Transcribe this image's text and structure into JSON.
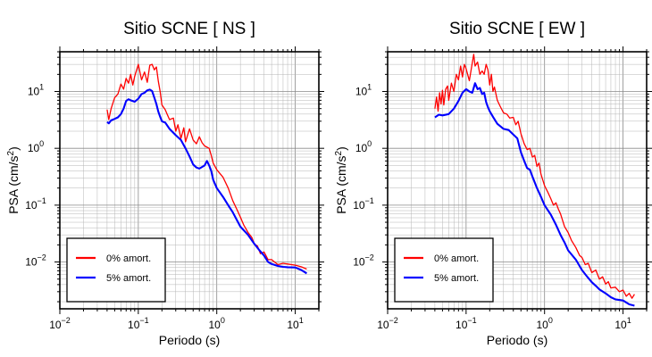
{
  "chart_data": [
    {
      "type": "line",
      "title": "Sitio SCNE [ NS ]",
      "xlabel": "Periodo (s)",
      "ylabel": "PSA (cm/s²)",
      "xscale": "log",
      "yscale": "log",
      "xlim": [
        0.01,
        20
      ],
      "ylim": [
        0.0015,
        50
      ],
      "grid": true,
      "legend_position": "bottom-left",
      "x_tick_labels": [
        {
          "value": 0.01,
          "base": "10",
          "exp": "−2"
        },
        {
          "value": 0.1,
          "base": "10",
          "exp": "−1"
        },
        {
          "value": 1,
          "base": "10",
          "exp": "0"
        },
        {
          "value": 10,
          "base": "10",
          "exp": "1"
        }
      ],
      "y_tick_labels": [
        {
          "value": 0.01,
          "base": "10",
          "exp": "−2"
        },
        {
          "value": 0.1,
          "base": "10",
          "exp": "−1"
        },
        {
          "value": 1,
          "base": "10",
          "exp": "0"
        },
        {
          "value": 10,
          "base": "10",
          "exp": "1"
        }
      ],
      "series": [
        {
          "name": "0% amort.",
          "color": "#ff0000",
          "points": [
            [
              0.04,
              4.8
            ],
            [
              0.042,
              3.2
            ],
            [
              0.045,
              5.0
            ],
            [
              0.05,
              7.8
            ],
            [
              0.055,
              9.0
            ],
            [
              0.06,
              13.5
            ],
            [
              0.065,
              11.0
            ],
            [
              0.07,
              17.0
            ],
            [
              0.075,
              14.0
            ],
            [
              0.08,
              20.0
            ],
            [
              0.085,
              13.0
            ],
            [
              0.09,
              18.5
            ],
            [
              0.1,
              30.0
            ],
            [
              0.11,
              16.0
            ],
            [
              0.12,
              22.0
            ],
            [
              0.13,
              14.5
            ],
            [
              0.14,
              29.0
            ],
            [
              0.15,
              30.0
            ],
            [
              0.16,
              24.0
            ],
            [
              0.17,
              27.0
            ],
            [
              0.18,
              15.0
            ],
            [
              0.19,
              10.0
            ],
            [
              0.2,
              5.8
            ],
            [
              0.22,
              4.8
            ],
            [
              0.25,
              3.2
            ],
            [
              0.28,
              3.4
            ],
            [
              0.3,
              2.0
            ],
            [
              0.32,
              2.6
            ],
            [
              0.35,
              1.5
            ],
            [
              0.38,
              2.3
            ],
            [
              0.4,
              1.3
            ],
            [
              0.45,
              2.2
            ],
            [
              0.5,
              1.4
            ],
            [
              0.55,
              1.2
            ],
            [
              0.6,
              1.6
            ],
            [
              0.65,
              1.25
            ],
            [
              0.7,
              1.1
            ],
            [
              0.8,
              1.0
            ],
            [
              0.85,
              0.75
            ],
            [
              0.9,
              0.55
            ],
            [
              1.0,
              0.42
            ],
            [
              1.2,
              0.31
            ],
            [
              1.4,
              0.2
            ],
            [
              1.6,
              0.12
            ],
            [
              1.8,
              0.085
            ],
            [
              2.0,
              0.062
            ],
            [
              2.2,
              0.045
            ],
            [
              2.5,
              0.033
            ],
            [
              2.8,
              0.027
            ],
            [
              3.0,
              0.021
            ],
            [
              3.3,
              0.019
            ],
            [
              3.6,
              0.014
            ],
            [
              4.0,
              0.015
            ],
            [
              4.5,
              0.011
            ],
            [
              5.0,
              0.011
            ],
            [
              6.0,
              0.009
            ],
            [
              7.0,
              0.0095
            ],
            [
              8.0,
              0.0092
            ],
            [
              10.0,
              0.0088
            ],
            [
              12.0,
              0.0082
            ],
            [
              14.0,
              0.0075
            ]
          ]
        },
        {
          "name": "5% amort.",
          "color": "#0000ff",
          "points": [
            [
              0.04,
              2.9
            ],
            [
              0.042,
              2.75
            ],
            [
              0.045,
              3.1
            ],
            [
              0.05,
              3.3
            ],
            [
              0.055,
              3.5
            ],
            [
              0.06,
              4.0
            ],
            [
              0.065,
              5.0
            ],
            [
              0.07,
              6.8
            ],
            [
              0.075,
              7.3
            ],
            [
              0.08,
              7.0
            ],
            [
              0.09,
              6.6
            ],
            [
              0.1,
              7.5
            ],
            [
              0.11,
              9.0
            ],
            [
              0.12,
              9.5
            ],
            [
              0.13,
              10.5
            ],
            [
              0.14,
              10.8
            ],
            [
              0.15,
              10.2
            ],
            [
              0.16,
              7.8
            ],
            [
              0.17,
              6.0
            ],
            [
              0.18,
              4.4
            ],
            [
              0.19,
              3.6
            ],
            [
              0.2,
              3.0
            ],
            [
              0.21,
              2.9
            ],
            [
              0.22,
              2.85
            ],
            [
              0.25,
              2.2
            ],
            [
              0.3,
              1.7
            ],
            [
              0.35,
              1.4
            ],
            [
              0.4,
              1.0
            ],
            [
              0.45,
              0.72
            ],
            [
              0.5,
              0.52
            ],
            [
              0.55,
              0.46
            ],
            [
              0.6,
              0.44
            ],
            [
              0.7,
              0.5
            ],
            [
              0.75,
              0.6
            ],
            [
              0.8,
              0.5
            ],
            [
              0.85,
              0.4
            ],
            [
              0.9,
              0.28
            ],
            [
              1.0,
              0.2
            ],
            [
              1.2,
              0.14
            ],
            [
              1.4,
              0.1
            ],
            [
              1.6,
              0.075
            ],
            [
              1.8,
              0.055
            ],
            [
              2.0,
              0.042
            ],
            [
              2.5,
              0.03
            ],
            [
              3.0,
              0.021
            ],
            [
              3.5,
              0.016
            ],
            [
              4.0,
              0.013
            ],
            [
              4.5,
              0.01
            ],
            [
              5.0,
              0.0092
            ],
            [
              6.0,
              0.0085
            ],
            [
              7.0,
              0.0082
            ],
            [
              8.0,
              0.0081
            ],
            [
              10.0,
              0.008
            ],
            [
              12.0,
              0.0072
            ],
            [
              14.0,
              0.0063
            ]
          ]
        }
      ]
    },
    {
      "type": "line",
      "title": "Sitio SCNE [ EW ]",
      "xlabel": "Periodo (s)",
      "ylabel": "PSA (cm/s²)",
      "xscale": "log",
      "yscale": "log",
      "xlim": [
        0.01,
        20
      ],
      "ylim": [
        0.0015,
        50
      ],
      "grid": true,
      "legend_position": "bottom-left",
      "x_tick_labels": [
        {
          "value": 0.01,
          "base": "10",
          "exp": "−2"
        },
        {
          "value": 0.1,
          "base": "10",
          "exp": "−1"
        },
        {
          "value": 1,
          "base": "10",
          "exp": "0"
        },
        {
          "value": 10,
          "base": "10",
          "exp": "1"
        }
      ],
      "y_tick_labels": [
        {
          "value": 0.01,
          "base": "10",
          "exp": "−2"
        },
        {
          "value": 0.1,
          "base": "10",
          "exp": "−1"
        },
        {
          "value": 1,
          "base": "10",
          "exp": "0"
        },
        {
          "value": 10,
          "base": "10",
          "exp": "1"
        }
      ],
      "series": [
        {
          "name": "0% amort.",
          "color": "#ff0000",
          "points": [
            [
              0.04,
              5.0
            ],
            [
              0.042,
              8.0
            ],
            [
              0.044,
              4.5
            ],
            [
              0.046,
              9.5
            ],
            [
              0.048,
              6.0
            ],
            [
              0.05,
              10.5
            ],
            [
              0.052,
              5.8
            ],
            [
              0.055,
              11.0
            ],
            [
              0.058,
              12.5
            ],
            [
              0.06,
              7.0
            ],
            [
              0.065,
              14.0
            ],
            [
              0.07,
              10.0
            ],
            [
              0.075,
              20.0
            ],
            [
              0.08,
              16.0
            ],
            [
              0.085,
              28.0
            ],
            [
              0.09,
              18.0
            ],
            [
              0.095,
              30.0
            ],
            [
              0.1,
              25.0
            ],
            [
              0.11,
              15.5
            ],
            [
              0.12,
              32.0
            ],
            [
              0.125,
              45.0
            ],
            [
              0.13,
              28.0
            ],
            [
              0.14,
              33.0
            ],
            [
              0.15,
              20.0
            ],
            [
              0.16,
              23.0
            ],
            [
              0.17,
              20.0
            ],
            [
              0.18,
              30.0
            ],
            [
              0.19,
              24.0
            ],
            [
              0.2,
              13.0
            ],
            [
              0.21,
              20.0
            ],
            [
              0.22,
              10.0
            ],
            [
              0.23,
              12.0
            ],
            [
              0.25,
              7.0
            ],
            [
              0.27,
              5.6
            ],
            [
              0.3,
              4.2
            ],
            [
              0.33,
              4.0
            ],
            [
              0.36,
              3.4
            ],
            [
              0.4,
              3.5
            ],
            [
              0.43,
              2.6
            ],
            [
              0.46,
              3.0
            ],
            [
              0.5,
              1.8
            ],
            [
              0.55,
              1.2
            ],
            [
              0.6,
              0.95
            ],
            [
              0.65,
              1.0
            ],
            [
              0.7,
              0.7
            ],
            [
              0.75,
              0.75
            ],
            [
              0.8,
              0.48
            ],
            [
              0.85,
              0.55
            ],
            [
              0.9,
              0.35
            ],
            [
              1.0,
              0.22
            ],
            [
              1.1,
              0.17
            ],
            [
              1.2,
              0.13
            ],
            [
              1.3,
              0.1
            ],
            [
              1.4,
              0.11
            ],
            [
              1.5,
              0.085
            ],
            [
              1.6,
              0.07
            ],
            [
              1.8,
              0.042
            ],
            [
              2.0,
              0.033
            ],
            [
              2.2,
              0.024
            ],
            [
              2.5,
              0.018
            ],
            [
              2.8,
              0.013
            ],
            [
              3.0,
              0.012
            ],
            [
              3.3,
              0.009
            ],
            [
              3.6,
              0.0095
            ],
            [
              4.0,
              0.0065
            ],
            [
              4.5,
              0.0072
            ],
            [
              5.0,
              0.005
            ],
            [
              5.5,
              0.0055
            ],
            [
              6.0,
              0.0041
            ],
            [
              6.5,
              0.0045
            ],
            [
              7.0,
              0.0035
            ],
            [
              8.0,
              0.0036
            ],
            [
              9.0,
              0.003
            ],
            [
              10.0,
              0.0032
            ],
            [
              11.0,
              0.0025
            ],
            [
              12.0,
              0.0028
            ],
            [
              13.0,
              0.0023
            ],
            [
              14.0,
              0.0027
            ]
          ]
        },
        {
          "name": "5% amort.",
          "color": "#0000ff",
          "points": [
            [
              0.04,
              3.5
            ],
            [
              0.045,
              3.9
            ],
            [
              0.05,
              3.8
            ],
            [
              0.06,
              4.0
            ],
            [
              0.07,
              5.0
            ],
            [
              0.08,
              6.8
            ],
            [
              0.09,
              9.5
            ],
            [
              0.1,
              11.0
            ],
            [
              0.11,
              10.0
            ],
            [
              0.12,
              9.5
            ],
            [
              0.13,
              14.0
            ],
            [
              0.14,
              11.0
            ],
            [
              0.15,
              11.5
            ],
            [
              0.16,
              9.0
            ],
            [
              0.17,
              9.5
            ],
            [
              0.18,
              6.5
            ],
            [
              0.19,
              5.3
            ],
            [
              0.2,
              4.5
            ],
            [
              0.22,
              3.6
            ],
            [
              0.25,
              2.7
            ],
            [
              0.3,
              2.2
            ],
            [
              0.35,
              2.1
            ],
            [
              0.4,
              1.75
            ],
            [
              0.45,
              1.5
            ],
            [
              0.5,
              0.85
            ],
            [
              0.55,
              0.6
            ],
            [
              0.6,
              0.45
            ],
            [
              0.65,
              0.42
            ],
            [
              0.7,
              0.32
            ],
            [
              0.8,
              0.2
            ],
            [
              0.9,
              0.14
            ],
            [
              1.0,
              0.1
            ],
            [
              1.2,
              0.068
            ],
            [
              1.4,
              0.045
            ],
            [
              1.6,
              0.03
            ],
            [
              1.8,
              0.022
            ],
            [
              2.0,
              0.016
            ],
            [
              2.5,
              0.011
            ],
            [
              3.0,
              0.0072
            ],
            [
              3.5,
              0.0055
            ],
            [
              4.0,
              0.0044
            ],
            [
              4.5,
              0.0038
            ],
            [
              5.0,
              0.0033
            ],
            [
              6.0,
              0.0028
            ],
            [
              7.0,
              0.0024
            ],
            [
              8.0,
              0.0022
            ],
            [
              10.0,
              0.0021
            ],
            [
              12.0,
              0.0018
            ],
            [
              14.0,
              0.0017
            ]
          ]
        }
      ]
    }
  ]
}
